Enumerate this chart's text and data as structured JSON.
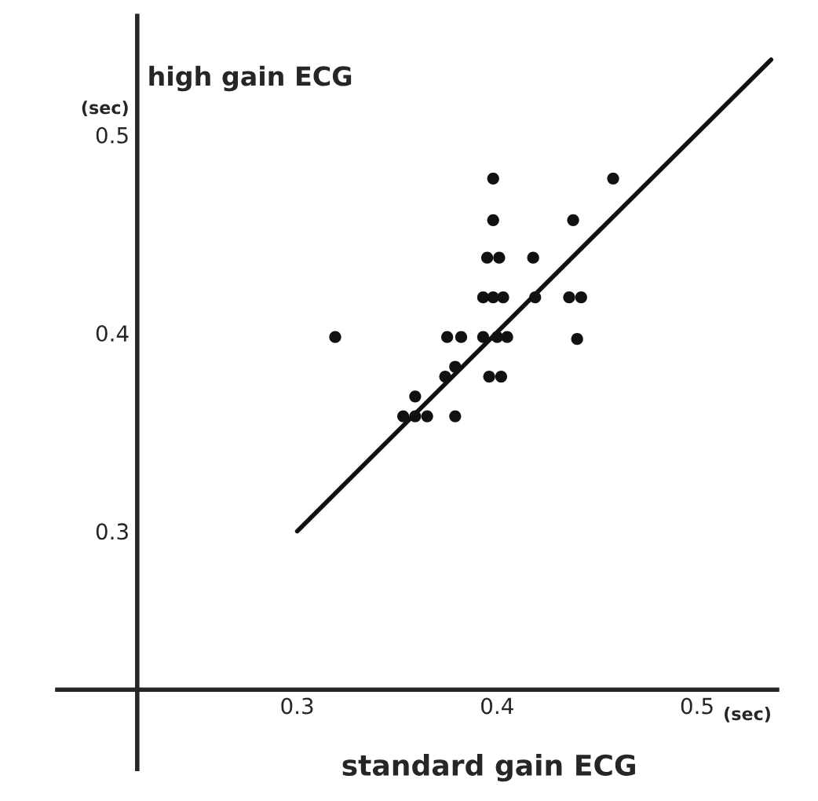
{
  "chart_data": {
    "type": "scatter",
    "xlabel": "standard gain ECG",
    "ylabel": "high gain ECG",
    "annotations": [
      "(sec)",
      "(sec)"
    ],
    "xlim": [
      0.18,
      0.54
    ],
    "ylim": [
      0.18,
      0.56
    ],
    "xticks": [
      0.3,
      0.4,
      0.5
    ],
    "yticks": [
      0.3,
      0.4,
      0.5
    ],
    "grid": false,
    "series": [
      {
        "marker": "circle",
        "color": "#111111",
        "x": [
          0.398,
          0.458,
          0.398,
          0.438,
          0.395,
          0.401,
          0.418,
          0.393,
          0.398,
          0.403,
          0.419,
          0.436,
          0.442,
          0.319,
          0.375,
          0.382,
          0.393,
          0.4,
          0.405,
          0.44,
          0.379,
          0.374,
          0.396,
          0.402,
          0.359,
          0.353,
          0.359,
          0.365,
          0.379
        ],
        "values": [
          0.478,
          0.478,
          0.457,
          0.457,
          0.438,
          0.438,
          0.438,
          0.418,
          0.418,
          0.418,
          0.418,
          0.418,
          0.418,
          0.398,
          0.398,
          0.398,
          0.398,
          0.398,
          0.398,
          0.397,
          0.383,
          0.378,
          0.378,
          0.378,
          0.368,
          0.358,
          0.358,
          0.358,
          0.358
        ]
      },
      {
        "type": "line",
        "color": "#111111",
        "x": [
          0.3,
          0.537
        ],
        "values": [
          0.3,
          0.538
        ]
      }
    ]
  }
}
